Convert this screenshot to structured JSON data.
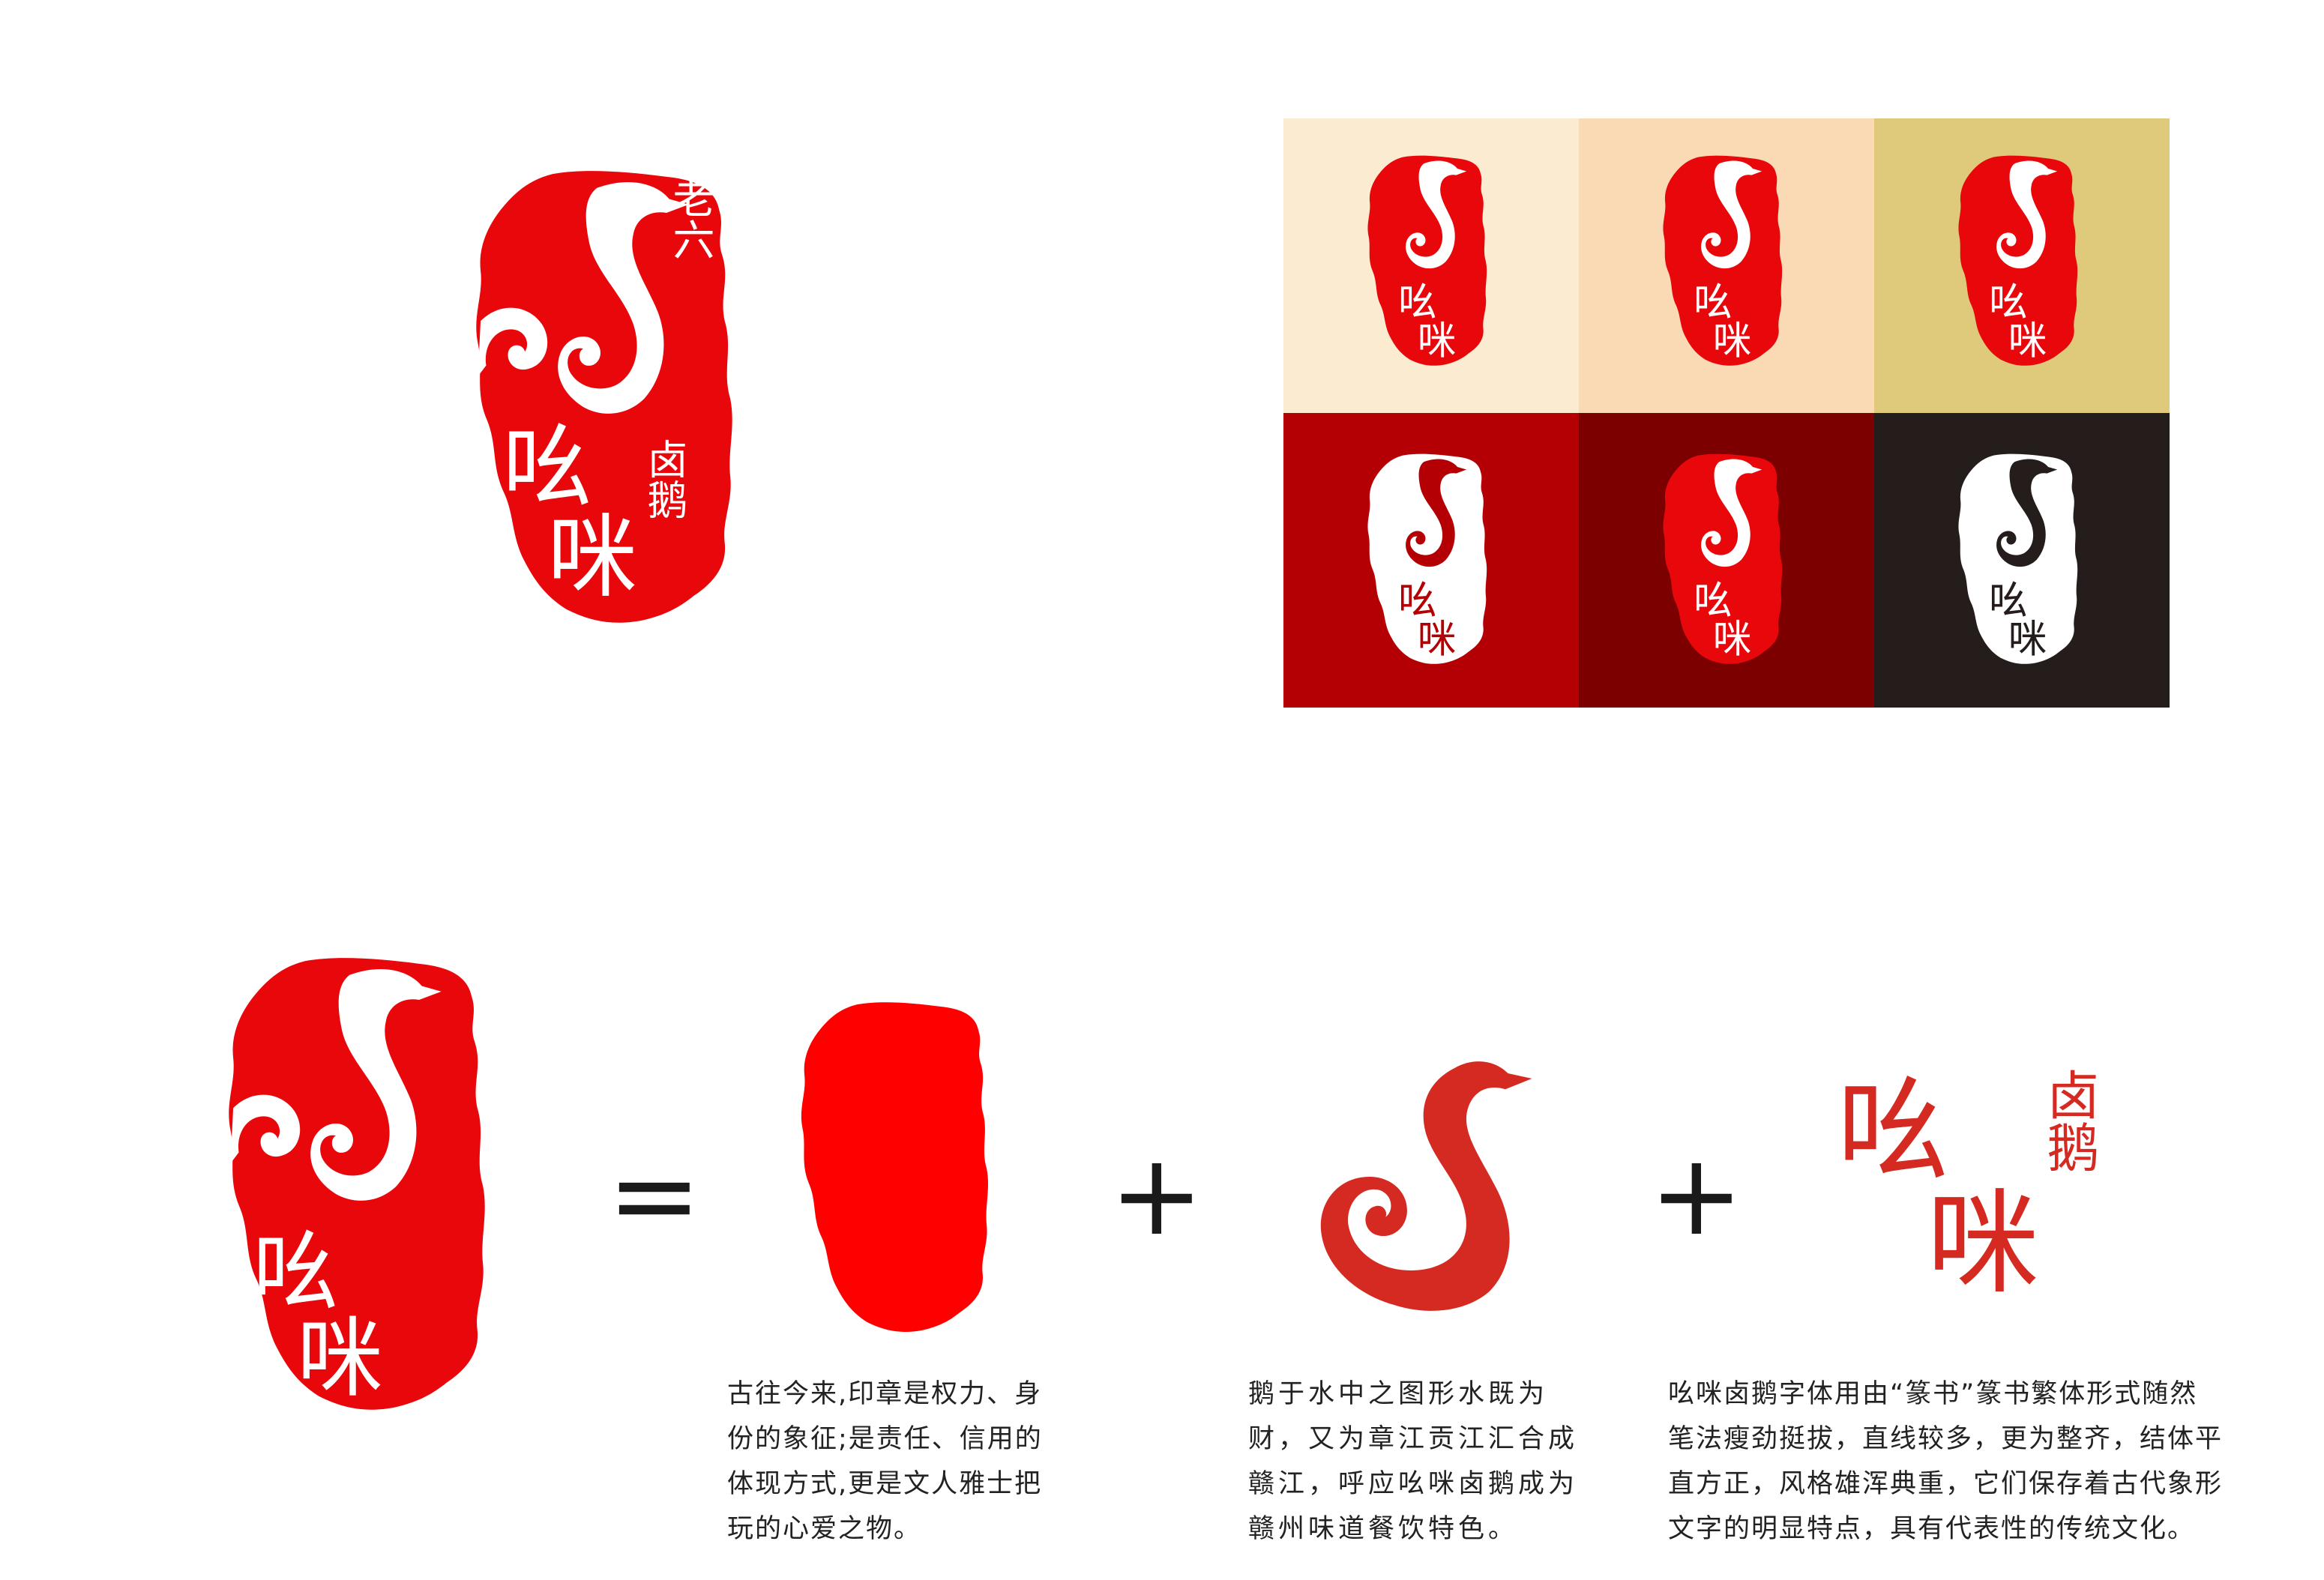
{
  "logo": {
    "small_chars": "老六",
    "big_chars": [
      "吆",
      "咪"
    ],
    "stamp_chars": "卤鹅",
    "brand_red": "#e8080c",
    "goose_red": "#d42a22"
  },
  "swatches": {
    "colors": [
      "#fbebd0",
      "#fad9b5",
      "#dfc97a",
      "#b40004",
      "#7d0001",
      "#241d1c"
    ],
    "logo_variants": [
      "red",
      "red",
      "red",
      "white-red",
      "red-white",
      "white-black"
    ]
  },
  "equation": {
    "equals_symbol": "=",
    "plus_symbol": "+"
  },
  "descriptions": {
    "seal": {
      "lines": [
        "古往今来,印章是权力、身",
        "份的象征;是责任、信用的",
        "体现方式,更是文人雅士把",
        "玩的心爱之物。"
      ]
    },
    "goose": {
      "lines": [
        "鹅于水中之图形水既为",
        "财，又为章江贡江汇合成",
        "赣江，呼应吆咪卤鹅成为",
        "赣州味道餐饮特色。"
      ]
    },
    "font": {
      "lines": [
        "吆咪卤鹅字体用由“篆书”篆书繁体形式随然",
        "笔法瘦劲挺拔，直线较多，更为整齐，结体平",
        "直方正，风格雄浑典重，它们保存着古代象形",
        "文字的明显特点，具有代表性的传统文化。"
      ]
    }
  }
}
